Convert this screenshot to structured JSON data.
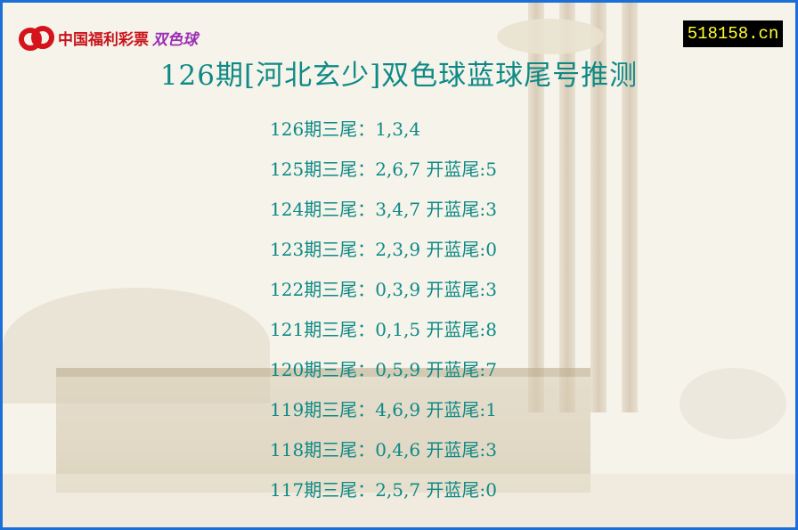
{
  "logo": {
    "text": "中国福利彩票",
    "text_product": "双色球"
  },
  "site_badge": "518158.cn",
  "title": "126期[河北玄少]双色球蓝球尾号推测",
  "labels": {
    "period_suffix": "期三尾：",
    "drawn_prefix": " 开蓝尾:"
  },
  "colors": {
    "text": "#0e8a86",
    "border": "#1c6fd6",
    "badge_bg": "#000000",
    "badge_text": "#ffff33"
  },
  "rows": [
    {
      "issue": "126",
      "tails": "1,3,4",
      "drawn": null
    },
    {
      "issue": "125",
      "tails": "2,6,7",
      "drawn": "5"
    },
    {
      "issue": "124",
      "tails": "3,4,7",
      "drawn": "3"
    },
    {
      "issue": "123",
      "tails": "2,3,9",
      "drawn": "0"
    },
    {
      "issue": "122",
      "tails": "0,3,9",
      "drawn": "3"
    },
    {
      "issue": "121",
      "tails": "0,1,5",
      "drawn": "8"
    },
    {
      "issue": "120",
      "tails": "0,5,9",
      "drawn": "7"
    },
    {
      "issue": "119",
      "tails": "4,6,9",
      "drawn": "1"
    },
    {
      "issue": "118",
      "tails": "0,4,6",
      "drawn": "3"
    },
    {
      "issue": "117",
      "tails": "2,5,7",
      "drawn": "0"
    }
  ]
}
